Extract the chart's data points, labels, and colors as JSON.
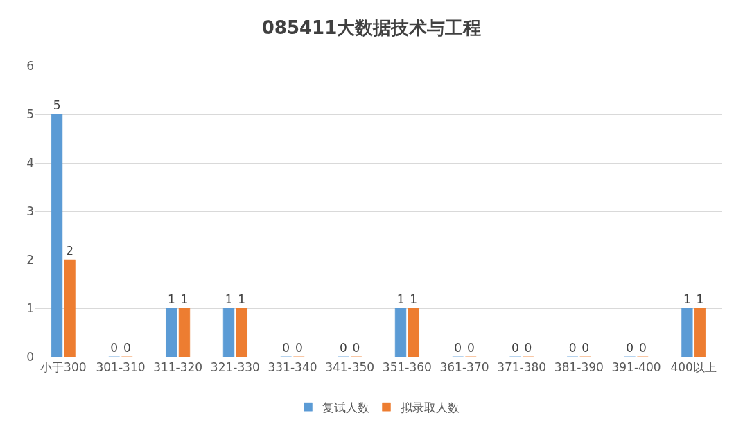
{
  "chart_data": {
    "type": "bar",
    "title": "085411大数据技术与工程",
    "categories": [
      "小于300",
      "301-310",
      "311-320",
      "321-330",
      "331-340",
      "341-350",
      "351-360",
      "361-370",
      "371-380",
      "381-390",
      "391-400",
      "400以上"
    ],
    "series": [
      {
        "name": "复试人数",
        "color": "#5b9bd5",
        "values": [
          5,
          0,
          1,
          1,
          0,
          0,
          1,
          0,
          0,
          0,
          0,
          1
        ]
      },
      {
        "name": "拟录取人数",
        "color": "#ed7d31",
        "values": [
          2,
          0,
          1,
          1,
          0,
          0,
          1,
          0,
          0,
          0,
          0,
          1
        ]
      }
    ],
    "ylim": [
      0,
      6
    ],
    "yticks": [
      0,
      1,
      2,
      3,
      4,
      5,
      6
    ],
    "grid": "y",
    "legend": "bottom",
    "data_labels": true
  }
}
